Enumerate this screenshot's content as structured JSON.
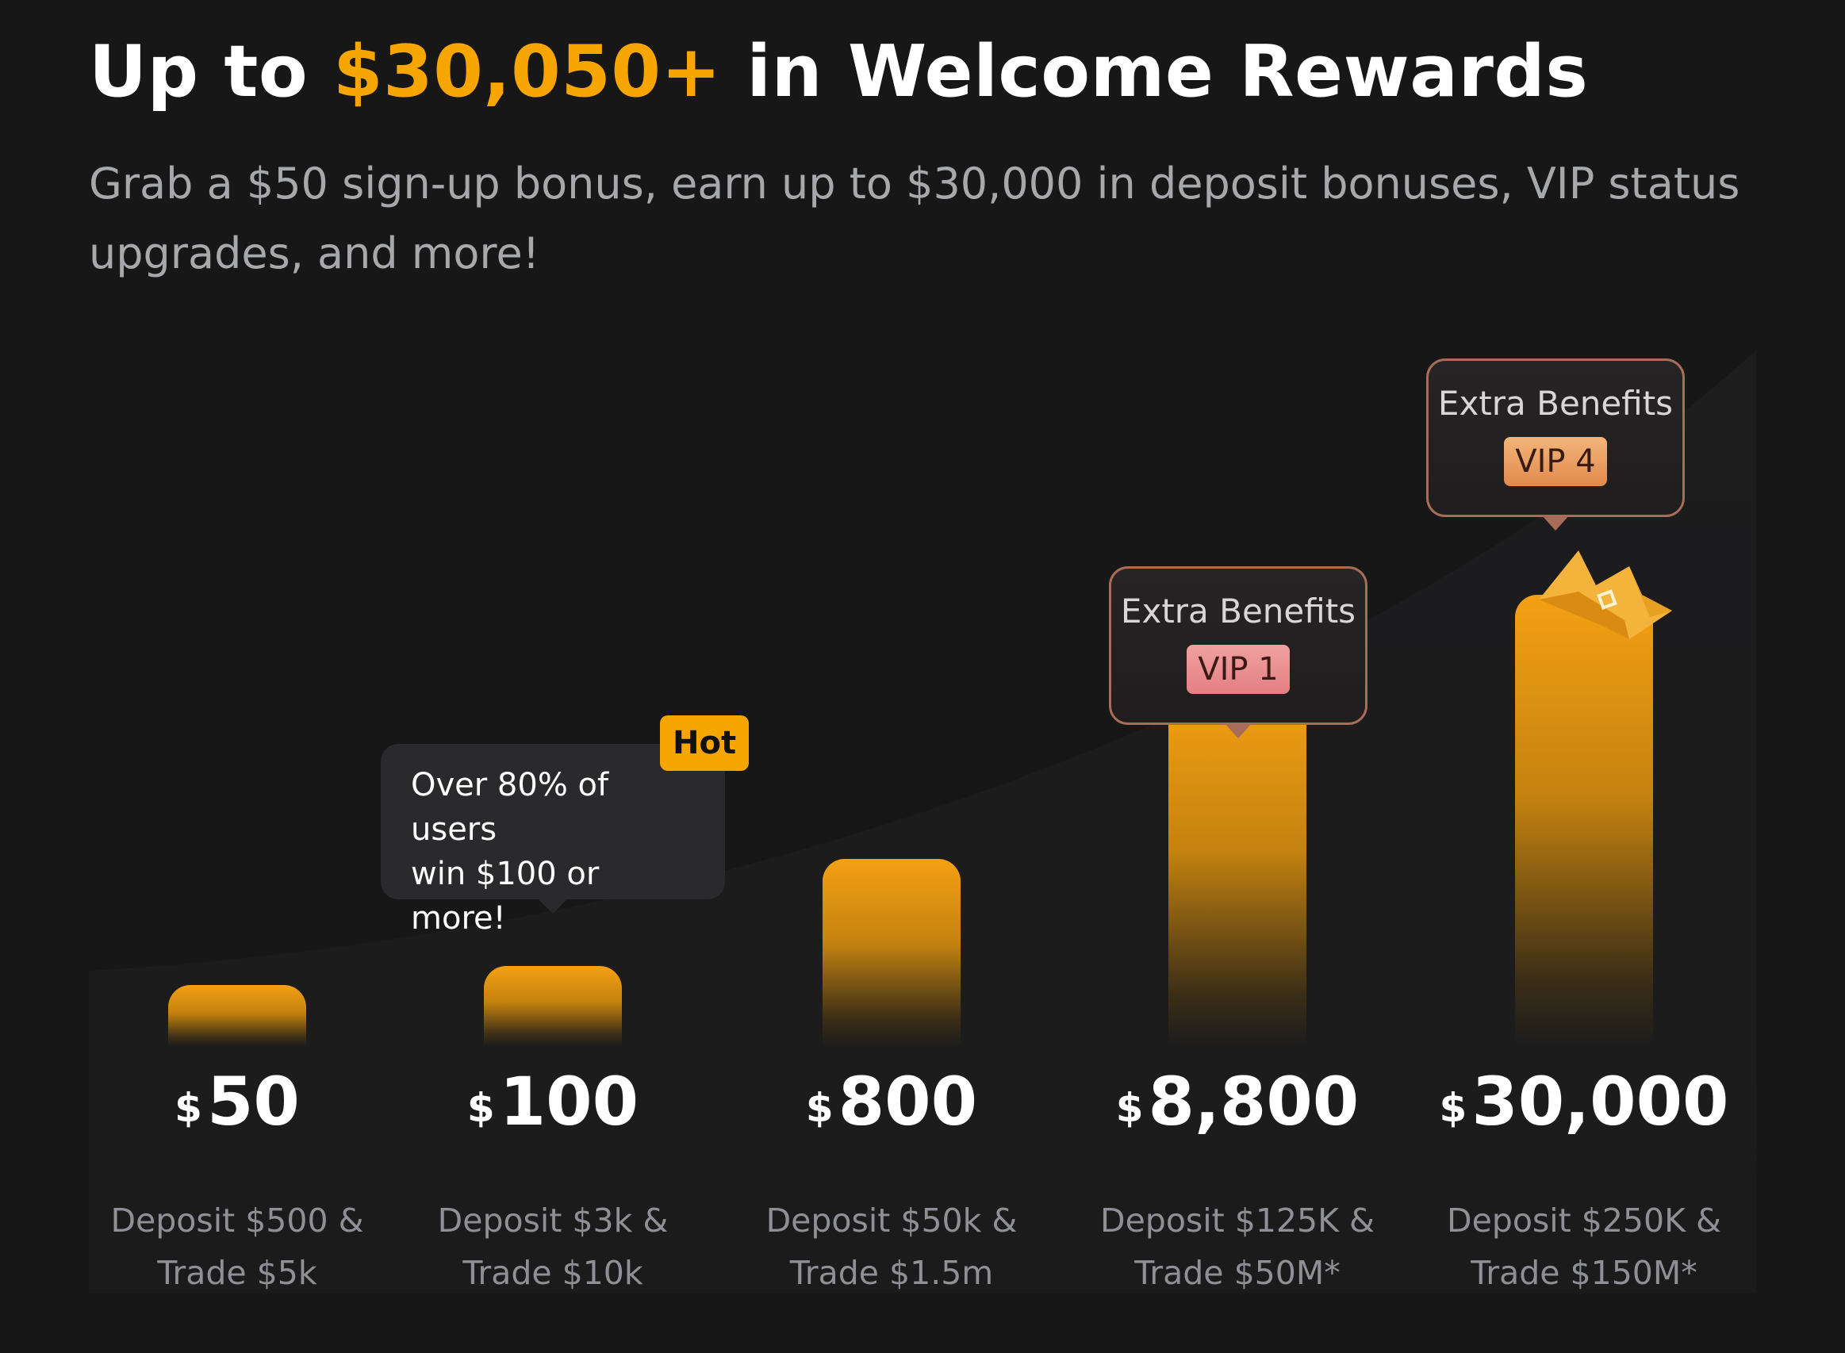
{
  "header": {
    "title_prefix": "Up to ",
    "title_amount": "$30,050+",
    "title_suffix": " in Welcome Rewards",
    "subtitle": "Grab a $50 sign-up bonus, earn up to $30,000 in deposit bonuses, VIP status upgrades, and more!"
  },
  "colors": {
    "background": "#171718",
    "accent": "#f7a600",
    "bar_top": "#f4a013",
    "muted_text": "#8f9095",
    "vip1": "#e47f84",
    "vip4": "#e08a4c"
  },
  "chart_data": {
    "type": "bar",
    "categories": [
      "$500 / $5k",
      "$3k / $10k",
      "$50k / $1.5m",
      "$125K / $50M*",
      "$250K / $150M*"
    ],
    "values": [
      50,
      100,
      800,
      8800,
      30000
    ],
    "value_labels": [
      "50",
      "100",
      "800",
      "8,800",
      "30,000"
    ],
    "currency": "$",
    "requirements": [
      {
        "line1": "Deposit $500 &",
        "line2": "Trade $5k"
      },
      {
        "line1": "Deposit $3k &",
        "line2": "Trade $10k"
      },
      {
        "line1": "Deposit $50k &",
        "line2": "Trade $1.5m"
      },
      {
        "line1": "Deposit $125K &",
        "line2": "Trade $50M*"
      },
      {
        "line1": "Deposit $250K &",
        "line2": "Trade $150M*"
      }
    ],
    "scale": "non-linear",
    "grid": false,
    "legend": "none"
  },
  "annotations": {
    "hot_badge": "Hot",
    "tooltip_line1": "Over 80% of users",
    "tooltip_line2": "win $100 or more!",
    "benefit_vip1": {
      "title": "Extra Benefits",
      "badge": "VIP 1"
    },
    "benefit_vip4": {
      "title": "Extra Benefits",
      "badge": "VIP 4"
    }
  },
  "icons": {
    "crown": "crown-icon"
  }
}
